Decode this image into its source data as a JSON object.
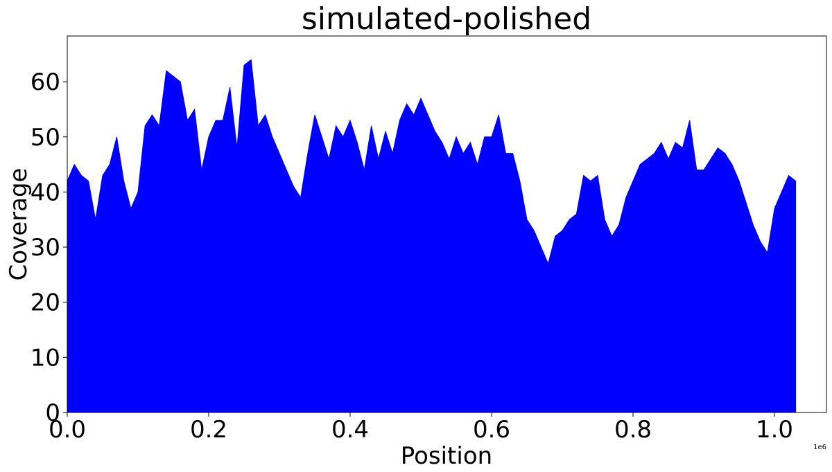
{
  "chart_data": {
    "type": "area",
    "title": "simulated-polished",
    "x_label": "Position",
    "y_label": "Coverage",
    "x_offset_label": "1e6",
    "color": "#0000ff",
    "xlim": [
      0,
      1073500
    ],
    "ylim": [
      0,
      68.3
    ],
    "xticks": [
      {
        "value": 0,
        "label": "0.0"
      },
      {
        "value": 200000,
        "label": "0.2"
      },
      {
        "value": 400000,
        "label": "0.4"
      },
      {
        "value": 600000,
        "label": "0.6"
      },
      {
        "value": 800000,
        "label": "0.8"
      },
      {
        "value": 1000000,
        "label": "1.0"
      }
    ],
    "yticks": [
      0,
      10,
      20,
      30,
      40,
      50,
      60
    ],
    "x": [
      0,
      10000,
      20000,
      30000,
      40000,
      50000,
      60000,
      70000,
      80000,
      90000,
      100000,
      110000,
      120000,
      130000,
      140000,
      150000,
      160000,
      170000,
      180000,
      190000,
      200000,
      210000,
      220000,
      230000,
      240000,
      250000,
      260000,
      270000,
      280000,
      290000,
      300000,
      310000,
      320000,
      330000,
      340000,
      350000,
      360000,
      370000,
      380000,
      390000,
      400000,
      410000,
      420000,
      430000,
      440000,
      450000,
      460000,
      470000,
      480000,
      490000,
      500000,
      510000,
      520000,
      530000,
      540000,
      550000,
      560000,
      570000,
      580000,
      590000,
      600000,
      610000,
      620000,
      630000,
      640000,
      650000,
      660000,
      670000,
      680000,
      690000,
      700000,
      710000,
      720000,
      730000,
      740000,
      750000,
      760000,
      770000,
      780000,
      790000,
      800000,
      810000,
      820000,
      830000,
      840000,
      850000,
      860000,
      870000,
      880000,
      890000,
      900000,
      910000,
      920000,
      930000,
      940000,
      950000,
      960000,
      970000,
      980000,
      990000,
      1000000,
      1010000,
      1020000,
      1030000
    ],
    "values": [
      42,
      45,
      43,
      42,
      35,
      43,
      45,
      50,
      42,
      37,
      40,
      52,
      54,
      52,
      62,
      61,
      60,
      53,
      55,
      44,
      50,
      53,
      53,
      59,
      48,
      63,
      64,
      52,
      54,
      50,
      47,
      44,
      41,
      39,
      47,
      54,
      50,
      46,
      52,
      50,
      53,
      49,
      44,
      52,
      46,
      51,
      47,
      53,
      56,
      54,
      57,
      54,
      51,
      49,
      46,
      50,
      47,
      49,
      45,
      50,
      50,
      54,
      47,
      47,
      42,
      35,
      33,
      30,
      27,
      32,
      33,
      35,
      36,
      43,
      42,
      43,
      35,
      32,
      34,
      39,
      42,
      45,
      46,
      47,
      49,
      46,
      49,
      48,
      53,
      44,
      44,
      46,
      48,
      47,
      45,
      42,
      38,
      34,
      31,
      29,
      37,
      40,
      43,
      42
    ]
  }
}
